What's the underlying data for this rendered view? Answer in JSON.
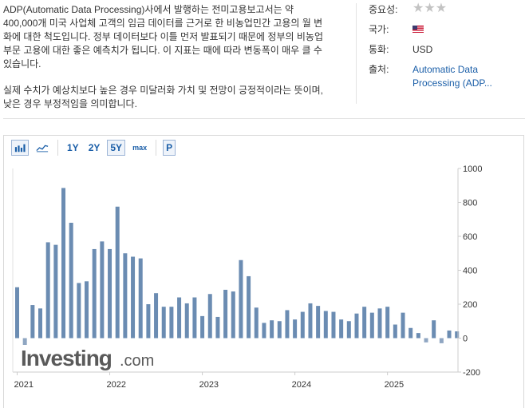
{
  "description": {
    "paragraph1": "ADP(Automatic Data Processing)사에서 발행하는 전미고용보고서는 약 400,000개 미국 사업체 고객의 임금 데이터를 근거로 한 비농업민간 고용의 월 변화에 대한 척도입니다. 정부 데이터보다 이틀 먼저 발표되기 때문에 정부의 비농업 부문 고용에 대한 좋은 예측치가 됩니다. 이 지표는 때에 따라 변동폭이 매우 클 수 있습니다.",
    "paragraph2": "실제 수치가 예상치보다 높은 경우 미달러화 가치 및 전망이 긍정적이라는 뜻이며, 낮은 경우 부정적임을 의미합니다."
  },
  "meta": {
    "importance_label": "중요성:",
    "importance_stars": "★★★",
    "country_label": "국가:",
    "country_icon": "us-flag-icon",
    "currency_label": "통화:",
    "currency_value": "USD",
    "source_label": "출처:",
    "source_value": "Automatic Data Processing (ADP..."
  },
  "toolbar": {
    "bar_icon": "bar-chart-icon",
    "line_icon": "line-chart-icon",
    "ranges": [
      "1Y",
      "2Y",
      "5Y",
      "max"
    ],
    "selected_range": "5Y",
    "p_label": "P"
  },
  "watermark": {
    "brand": "Investing",
    "suffix": ".com"
  },
  "colors": {
    "bar": "#6b8cb2",
    "negative_bar": "#8fa6c2",
    "link": "#1a5ea8"
  },
  "chart_data": {
    "type": "bar",
    "ylim": [
      -200,
      1000
    ],
    "yticks": [
      1000,
      800,
      600,
      400,
      200,
      0,
      -200
    ],
    "x_tick_labels": [
      "2021",
      "2022",
      "2023",
      "2024",
      "2025"
    ],
    "grid": false,
    "series": [
      {
        "x": [
          "2021-01",
          "2021-02",
          "2021-03",
          "2021-04",
          "2021-05",
          "2021-06",
          "2021-07",
          "2021-08",
          "2021-09",
          "2021-10",
          "2021-11",
          "2021-12",
          "2022-01",
          "2022-02",
          "2022-03",
          "2022-04",
          "2022-05",
          "2022-06",
          "2022-07",
          "2022-08",
          "2022-09",
          "2022-10",
          "2022-11",
          "2022-12",
          "2023-01",
          "2023-02",
          "2023-03",
          "2023-04",
          "2023-05",
          "2023-06",
          "2023-07",
          "2023-08",
          "2023-09",
          "2023-10",
          "2023-11",
          "2023-12",
          "2024-01",
          "2024-02",
          "2024-03",
          "2024-04",
          "2024-05",
          "2024-06",
          "2024-07",
          "2024-08",
          "2024-09",
          "2024-10",
          "2024-11",
          "2024-12",
          "2025-01",
          "2025-02",
          "2025-03",
          "2025-04",
          "2025-05",
          "2025-06",
          "2025-07",
          "2025-08",
          "2025-09",
          "2025-10"
        ],
        "values": [
          300,
          -40,
          195,
          175,
          565,
          550,
          885,
          680,
          325,
          335,
          525,
          570,
          525,
          775,
          500,
          480,
          470,
          200,
          265,
          185,
          185,
          240,
          205,
          240,
          130,
          260,
          125,
          285,
          275,
          460,
          365,
          180,
          90,
          105,
          100,
          165,
          110,
          155,
          205,
          190,
          160,
          155,
          110,
          100,
          145,
          185,
          150,
          175,
          185,
          80,
          150,
          60,
          30,
          -25,
          105,
          -30,
          45,
          40
        ]
      }
    ]
  }
}
